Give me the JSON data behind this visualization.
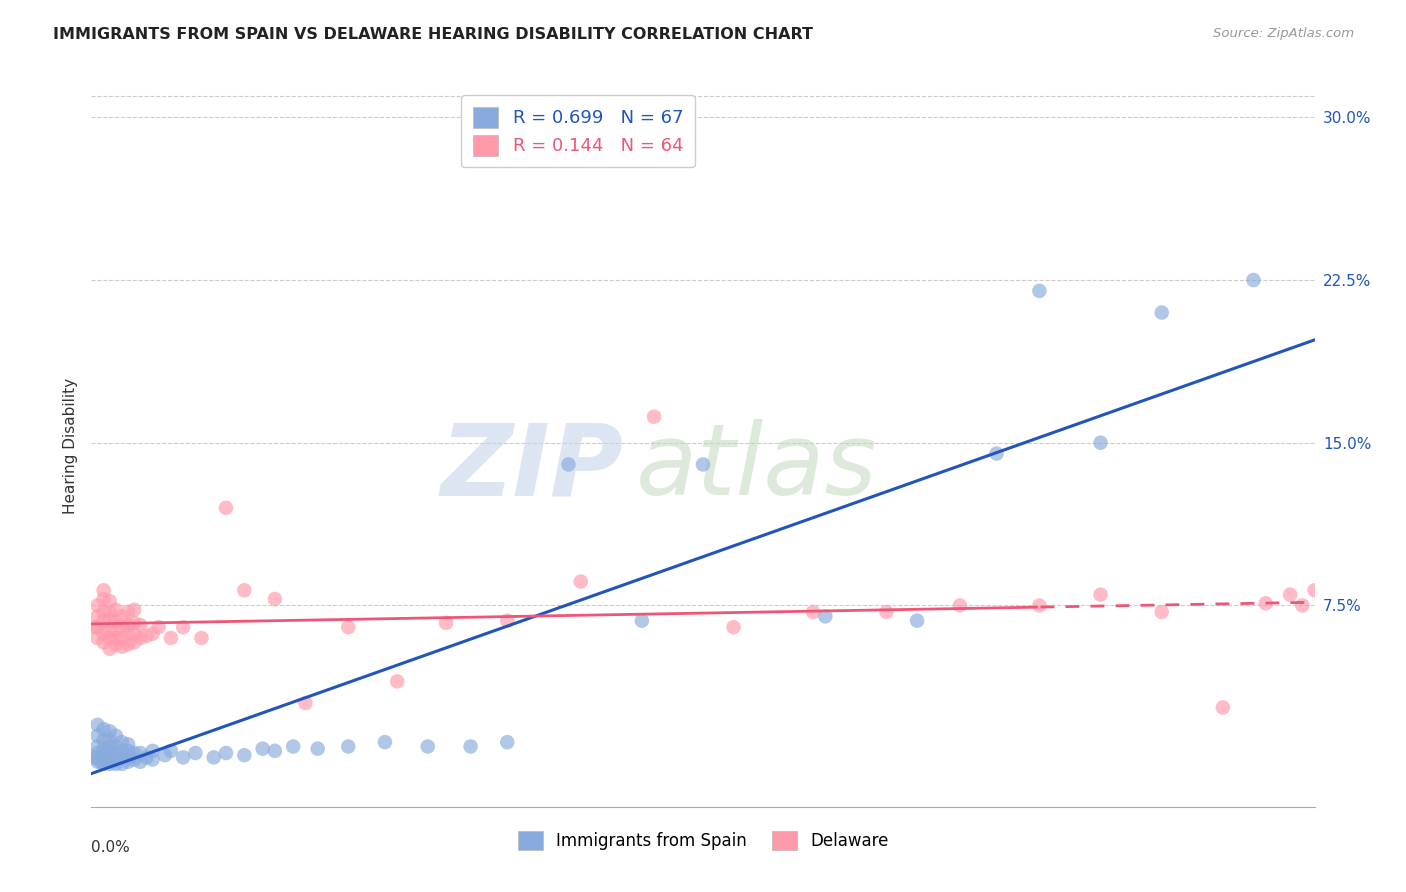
{
  "title": "IMMIGRANTS FROM SPAIN VS DELAWARE HEARING DISABILITY CORRELATION CHART",
  "source": "Source: ZipAtlas.com",
  "ylabel": "Hearing Disability",
  "xmin": 0.0,
  "xmax": 0.2,
  "ymin": -0.018,
  "ymax": 0.315,
  "r_blue": 0.699,
  "n_blue": 67,
  "r_pink": 0.144,
  "n_pink": 64,
  "legend_label_blue": "Immigrants from Spain",
  "legend_label_pink": "Delaware",
  "color_blue": "#88AADD",
  "color_pink": "#FF99AA",
  "trendline_blue": "#2255BB",
  "trendline_pink": "#EE5577",
  "ytick_values": [
    0.075,
    0.15,
    0.225,
    0.3
  ],
  "blue_x": [
    0.0005,
    0.001,
    0.001,
    0.001,
    0.001,
    0.001,
    0.001,
    0.0015,
    0.002,
    0.002,
    0.002,
    0.002,
    0.002,
    0.002,
    0.003,
    0.003,
    0.003,
    0.003,
    0.003,
    0.003,
    0.003,
    0.004,
    0.004,
    0.004,
    0.004,
    0.004,
    0.005,
    0.005,
    0.005,
    0.005,
    0.006,
    0.006,
    0.006,
    0.006,
    0.007,
    0.007,
    0.008,
    0.008,
    0.009,
    0.01,
    0.01,
    0.012,
    0.013,
    0.015,
    0.017,
    0.02,
    0.022,
    0.025,
    0.028,
    0.03,
    0.033,
    0.037,
    0.042,
    0.048,
    0.055,
    0.062,
    0.068,
    0.078,
    0.09,
    0.1,
    0.12,
    0.135,
    0.148,
    0.155,
    0.165,
    0.175,
    0.19
  ],
  "blue_y": [
    0.005,
    0.003,
    0.005,
    0.007,
    0.01,
    0.015,
    0.02,
    0.003,
    0.002,
    0.004,
    0.006,
    0.009,
    0.013,
    0.018,
    0.002,
    0.004,
    0.006,
    0.008,
    0.01,
    0.013,
    0.017,
    0.002,
    0.004,
    0.007,
    0.01,
    0.015,
    0.002,
    0.005,
    0.008,
    0.012,
    0.003,
    0.005,
    0.008,
    0.011,
    0.004,
    0.007,
    0.003,
    0.007,
    0.005,
    0.004,
    0.008,
    0.006,
    0.008,
    0.005,
    0.007,
    0.005,
    0.007,
    0.006,
    0.009,
    0.008,
    0.01,
    0.009,
    0.01,
    0.012,
    0.01,
    0.01,
    0.012,
    0.14,
    0.068,
    0.14,
    0.07,
    0.068,
    0.145,
    0.22,
    0.15,
    0.21,
    0.225
  ],
  "pink_x": [
    0.0005,
    0.001,
    0.001,
    0.001,
    0.001,
    0.002,
    0.002,
    0.002,
    0.002,
    0.002,
    0.002,
    0.003,
    0.003,
    0.003,
    0.003,
    0.003,
    0.003,
    0.004,
    0.004,
    0.004,
    0.004,
    0.004,
    0.005,
    0.005,
    0.005,
    0.005,
    0.006,
    0.006,
    0.006,
    0.006,
    0.007,
    0.007,
    0.007,
    0.007,
    0.008,
    0.008,
    0.009,
    0.01,
    0.011,
    0.013,
    0.015,
    0.018,
    0.022,
    0.025,
    0.03,
    0.035,
    0.042,
    0.05,
    0.058,
    0.068,
    0.08,
    0.092,
    0.105,
    0.118,
    0.13,
    0.142,
    0.155,
    0.165,
    0.175,
    0.185,
    0.192,
    0.196,
    0.198,
    0.2
  ],
  "pink_y": [
    0.065,
    0.06,
    0.065,
    0.07,
    0.075,
    0.058,
    0.062,
    0.068,
    0.072,
    0.078,
    0.082,
    0.055,
    0.06,
    0.063,
    0.068,
    0.072,
    0.077,
    0.057,
    0.06,
    0.064,
    0.068,
    0.073,
    0.056,
    0.06,
    0.065,
    0.07,
    0.057,
    0.062,
    0.066,
    0.072,
    0.058,
    0.062,
    0.067,
    0.073,
    0.06,
    0.066,
    0.061,
    0.062,
    0.065,
    0.06,
    0.065,
    0.06,
    0.12,
    0.082,
    0.078,
    0.03,
    0.065,
    0.04,
    0.067,
    0.068,
    0.086,
    0.162,
    0.065,
    0.072,
    0.072,
    0.075,
    0.075,
    0.08,
    0.072,
    0.028,
    0.076,
    0.08,
    0.075,
    0.082
  ]
}
